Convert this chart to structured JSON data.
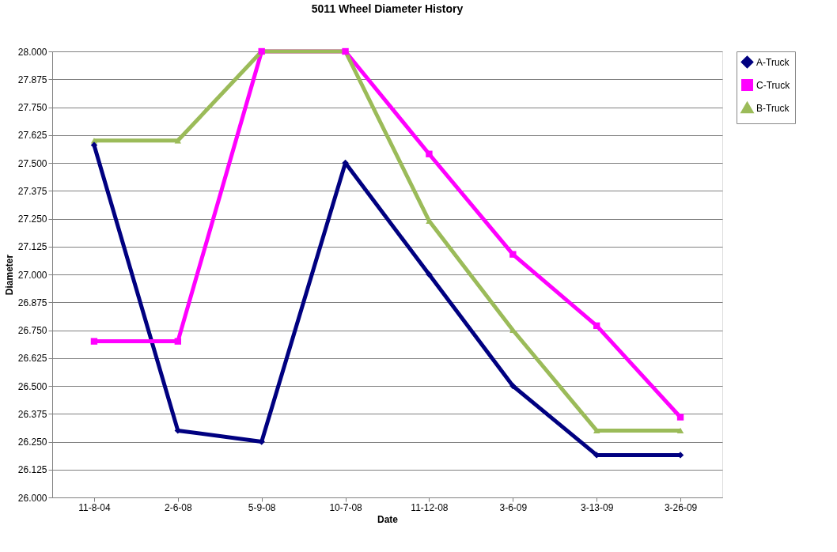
{
  "chart_data": {
    "type": "line",
    "title": "5011 Wheel Diameter History",
    "xlabel": "Date",
    "ylabel": "Diameter",
    "categories": [
      "11-8-04",
      "2-6-08",
      "5-9-08",
      "10-7-08",
      "11-12-08",
      "3-6-09",
      "3-13-09",
      "3-26-09"
    ],
    "series": [
      {
        "name": "A-Truck",
        "color": "#000080",
        "marker": "diamond",
        "values": [
          27.58,
          26.3,
          26.25,
          27.5,
          27.0,
          26.5,
          26.19,
          26.19
        ]
      },
      {
        "name": "C-Truck",
        "color": "#ff00ff",
        "marker": "square",
        "values": [
          26.7,
          26.7,
          28.0,
          28.0,
          27.54,
          27.09,
          26.77,
          26.36
        ]
      },
      {
        "name": "B-Truck",
        "color": "#9bbb59",
        "marker": "triangle",
        "values": [
          27.6,
          27.6,
          28.0,
          28.0,
          27.24,
          26.75,
          26.3,
          26.3
        ]
      }
    ],
    "ylim": [
      26.0,
      28.0
    ],
    "yticks": [
      {
        "value": 26.0,
        "label": "26.000"
      },
      {
        "value": 26.125,
        "label": "26.125"
      },
      {
        "value": 26.25,
        "label": "26.250"
      },
      {
        "value": 26.375,
        "label": "26.375"
      },
      {
        "value": 26.5,
        "label": "26.500"
      },
      {
        "value": 26.625,
        "label": "26.625"
      },
      {
        "value": 26.75,
        "label": "26.750"
      },
      {
        "value": 26.875,
        "label": "26.875"
      },
      {
        "value": 27.0,
        "label": "27.000"
      },
      {
        "value": 27.125,
        "label": "27.125"
      },
      {
        "value": 27.25,
        "label": "27.250"
      },
      {
        "value": 27.375,
        "label": "27.375"
      },
      {
        "value": 27.5,
        "label": "27.500"
      },
      {
        "value": 27.625,
        "label": "27.625"
      },
      {
        "value": 27.75,
        "label": "27.750"
      },
      {
        "value": 27.875,
        "label": "27.875"
      },
      {
        "value": 28.0,
        "label": "28.000"
      }
    ],
    "grid": "y",
    "legend": "right",
    "line_style": "solid"
  }
}
